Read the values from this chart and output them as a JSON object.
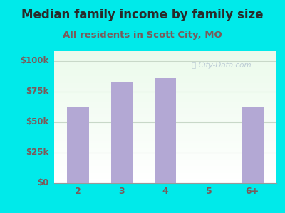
{
  "title": "Median family income by family size",
  "subtitle": "All residents in Scott City, MO",
  "categories": [
    "2",
    "3",
    "4",
    "5",
    "6+"
  ],
  "values": [
    62000,
    83000,
    86000,
    0,
    63000
  ],
  "bar_color": "#b3a8d4",
  "bg_color": "#00eaea",
  "yticks": [
    0,
    25000,
    50000,
    75000,
    100000
  ],
  "ytick_labels": [
    "$0",
    "$25k",
    "$50k",
    "$75k",
    "$100k"
  ],
  "ylim": [
    0,
    108000
  ],
  "title_color": "#2a2a2a",
  "subtitle_color": "#7a5a5a",
  "tick_color": "#7a5a5a",
  "grid_color": "#c8d8c8",
  "title_fontsize": 12,
  "subtitle_fontsize": 9.5,
  "watermark_color": "#aabbcc"
}
